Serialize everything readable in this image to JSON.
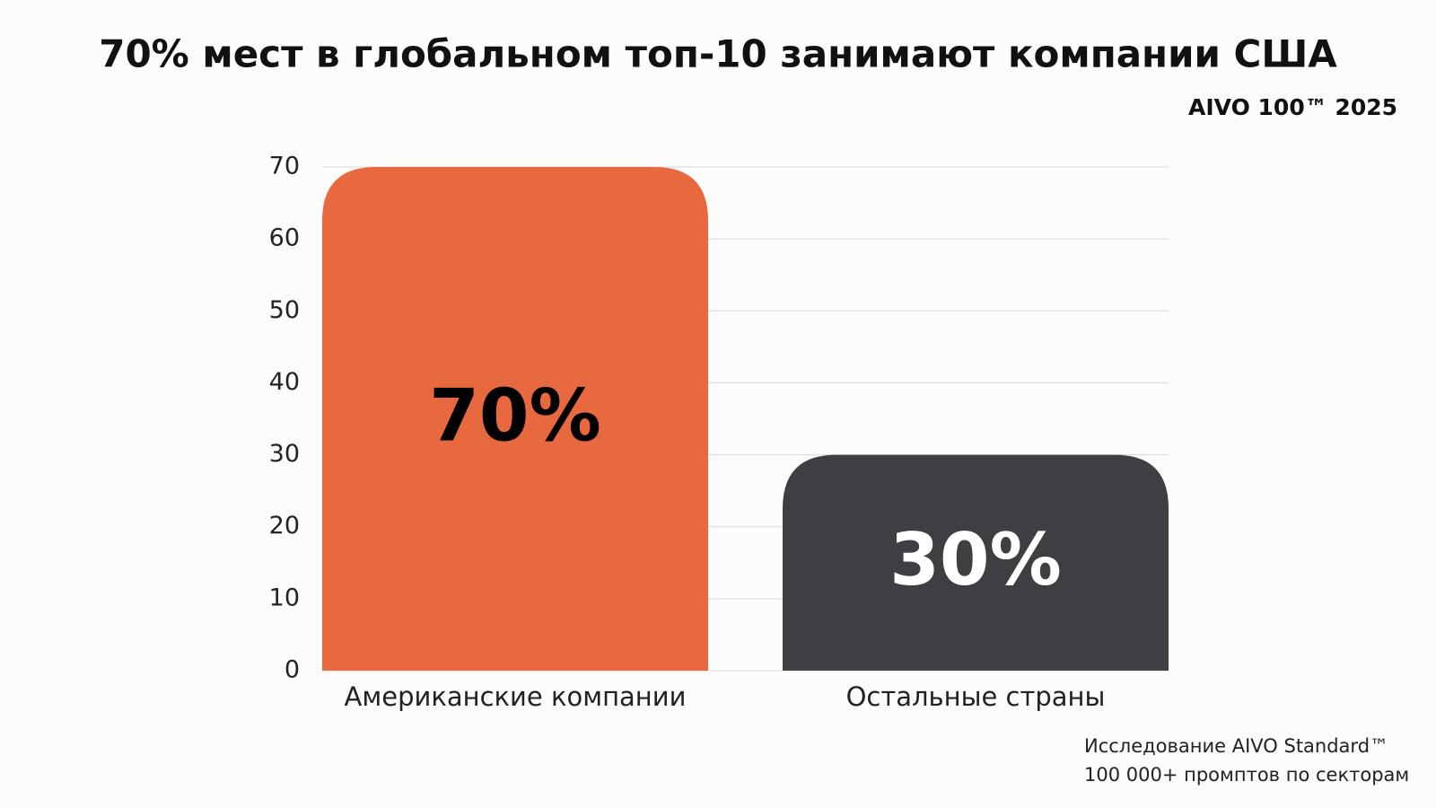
{
  "chart_data": {
    "type": "bar",
    "title": "70% мест в глобальном топ-10 занимают компании США",
    "subtitle": "AIVO 100™ 2025",
    "categories": [
      "Американские компании",
      "Остальные страны"
    ],
    "values": [
      70,
      30
    ],
    "value_labels": [
      "70%",
      "30%"
    ],
    "colors": [
      "#e8693f",
      "#3e3f43"
    ],
    "value_label_colors": [
      "#000000",
      "#ffffff"
    ],
    "ylim": [
      0,
      70
    ],
    "yticks": [
      0,
      10,
      20,
      30,
      40,
      50,
      60,
      70
    ],
    "grid": true,
    "notes": [
      "Исследование AIVO Standard™",
      "100 000+ промптов по секторам"
    ]
  }
}
